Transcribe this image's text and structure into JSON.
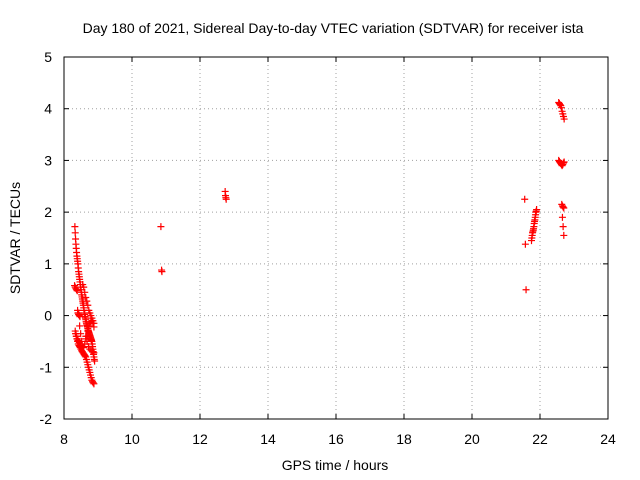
{
  "chart_data": {
    "type": "scatter",
    "title": "Day 180 of 2021, Sidereal Day-to-day VTEC variation (SDTVAR) for receiver ista",
    "xlabel": "GPS time / hours",
    "ylabel": "SDTVAR / TECUs",
    "xlim": [
      8,
      24
    ],
    "ylim": [
      -2,
      5
    ],
    "xticks": [
      8,
      10,
      12,
      14,
      16,
      18,
      20,
      22,
      24
    ],
    "yticks": [
      -2,
      -1,
      0,
      1,
      2,
      3,
      4,
      5
    ],
    "grid": true,
    "marker": "+",
    "color": "#ff0000",
    "series": [
      {
        "name": "SDTVAR",
        "x": [
          8.32,
          8.33,
          8.34,
          8.35,
          8.36,
          8.37,
          8.38,
          8.39,
          8.4,
          8.41,
          8.42,
          8.43,
          8.44,
          8.45,
          8.46,
          8.47,
          8.48,
          8.49,
          8.5,
          8.51,
          8.52,
          8.53,
          8.54,
          8.55,
          8.56,
          8.57,
          8.58,
          8.59,
          8.6,
          8.61,
          8.62,
          8.63,
          8.64,
          8.65,
          8.66,
          8.67,
          8.68,
          8.69,
          8.7,
          8.71,
          8.72,
          8.73,
          8.74,
          8.75,
          8.76,
          8.77,
          8.78,
          8.79,
          8.8,
          8.81,
          8.82,
          8.83,
          8.84,
          8.85,
          8.86,
          8.87,
          8.88,
          8.89,
          8.9,
          8.31,
          8.33,
          8.35,
          8.37,
          8.39,
          8.41,
          8.43,
          8.45,
          8.47,
          8.33,
          8.35,
          8.37,
          8.39,
          8.41,
          8.43,
          8.45,
          8.47,
          8.49,
          8.34,
          8.36,
          8.38,
          8.4,
          8.42,
          8.44,
          8.46,
          8.48,
          8.5,
          8.52,
          8.54,
          8.56,
          8.58,
          8.6,
          8.62,
          8.64,
          8.66,
          8.68,
          8.7,
          8.72,
          8.74,
          8.76,
          8.78,
          8.8,
          8.82,
          8.84,
          8.86,
          8.88,
          8.4,
          8.43,
          8.46,
          8.49,
          8.52,
          8.55,
          8.58,
          8.61,
          8.64,
          8.67,
          8.7,
          8.73,
          8.76,
          8.79,
          8.82,
          8.85,
          8.88,
          8.55,
          8.58,
          8.61,
          8.64,
          8.67,
          8.7,
          8.73,
          8.76,
          8.79,
          8.82,
          8.85,
          8.88,
          8.64,
          8.68,
          8.72,
          8.76,
          8.8,
          8.84,
          8.88,
          10.85,
          10.87,
          10.88,
          12.74,
          12.75,
          12.76,
          12.77,
          21.55,
          21.57,
          21.59,
          21.75,
          21.76,
          21.77,
          21.78,
          21.79,
          21.8,
          21.81,
          21.82,
          21.83,
          21.84,
          21.85,
          21.86,
          21.87,
          21.88,
          21.89,
          21.9,
          22.55,
          22.57,
          22.59,
          22.61,
          22.63,
          22.65,
          22.67,
          22.69,
          22.71,
          22.55,
          22.57,
          22.59,
          22.61,
          22.63,
          22.65,
          22.67,
          22.69,
          22.71,
          22.64,
          22.66,
          22.68,
          22.7,
          22.66,
          22.68,
          22.7
        ],
        "y": [
          1.72,
          1.6,
          1.48,
          1.38,
          1.3,
          1.22,
          1.15,
          1.1,
          1.05,
          1.0,
          0.92,
          0.85,
          0.8,
          0.75,
          0.7,
          0.65,
          0.6,
          0.55,
          0.5,
          0.45,
          0.4,
          0.36,
          0.32,
          0.28,
          0.24,
          0.2,
          0.15,
          0.1,
          0.05,
          0.02,
          -0.02,
          -0.05,
          -0.08,
          -0.12,
          -0.15,
          -0.18,
          -0.2,
          -0.22,
          -0.25,
          -0.28,
          -0.3,
          -0.32,
          -0.34,
          -0.36,
          -0.38,
          -0.4,
          -0.42,
          -0.44,
          -0.46,
          -0.48,
          -0.5,
          -0.55,
          -0.6,
          -0.65,
          -0.7,
          -0.75,
          -0.8,
          -0.85,
          -0.88,
          0.58,
          0.55,
          0.52,
          0.5,
          0.48,
          0.05,
          0.02,
          0.0,
          -0.02,
          -0.3,
          -0.35,
          -0.4,
          -0.45,
          -0.48,
          -0.5,
          -0.52,
          -0.55,
          -0.58,
          -0.35,
          -0.4,
          -0.45,
          -0.5,
          -0.55,
          -0.58,
          -0.6,
          -0.62,
          -0.65,
          -0.68,
          -0.7,
          -0.72,
          -0.74,
          -0.76,
          -0.78,
          -0.8,
          -0.85,
          -0.9,
          -0.95,
          -1.0,
          -1.05,
          -1.1,
          -1.15,
          -1.2,
          -1.25,
          -1.28,
          -1.3,
          -1.32,
          0.1,
          0.05,
          -0.2,
          -0.35,
          -0.5,
          -0.6,
          -0.62,
          -0.55,
          -0.45,
          -0.4,
          -0.3,
          -0.2,
          -0.15,
          -0.12,
          -0.1,
          -0.15,
          -0.22,
          0.6,
          0.55,
          0.45,
          0.35,
          0.28,
          0.2,
          0.1,
          0.05,
          0.0,
          -0.05,
          -0.1,
          -0.15,
          -0.4,
          -0.5,
          -0.6,
          -0.65,
          -0.68,
          -0.7,
          -0.72,
          1.72,
          0.88,
          0.85,
          2.4,
          2.32,
          2.28,
          2.25,
          2.25,
          1.38,
          0.5,
          1.45,
          1.5,
          1.55,
          1.6,
          1.62,
          1.65,
          1.68,
          1.72,
          1.78,
          1.82,
          1.85,
          1.9,
          1.95,
          2.0,
          2.02,
          2.05,
          4.12,
          4.1,
          4.08,
          4.06,
          4.02,
          3.95,
          3.9,
          3.85,
          3.8,
          3.0,
          2.98,
          2.96,
          2.94,
          2.92,
          2.9,
          2.92,
          2.95,
          2.97,
          2.15,
          2.12,
          2.1,
          2.08,
          1.9,
          1.72,
          1.55
        ]
      }
    ]
  }
}
